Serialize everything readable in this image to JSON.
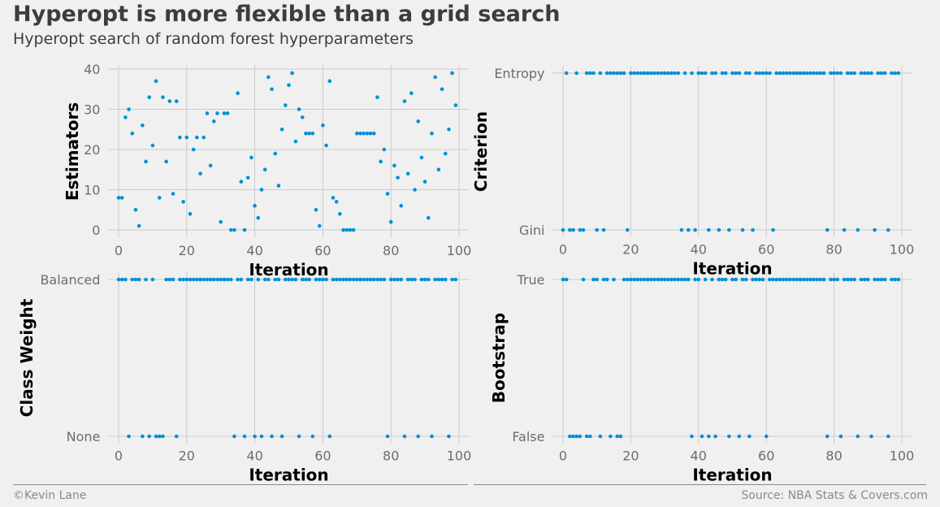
{
  "title": "Hyperopt is more flexible than a grid search",
  "subtitle": "Hyperopt search of random forest hyperparameters",
  "footer": {
    "left": "©Kevin Lane",
    "right": "Source: NBA Stats & Covers.com"
  },
  "colors": {
    "point": "#008fd5",
    "grid": "#cbcbcb",
    "tick": "#6d6d6d",
    "label": "#000000",
    "background": "#f0f0f0"
  },
  "chart_data": [
    {
      "type": "scatter",
      "title": "",
      "xlabel": "Iteration",
      "ylabel": "Estimators",
      "xlim": [
        -3,
        103
      ],
      "ylim": [
        -2,
        41
      ],
      "xticks": [
        0,
        20,
        40,
        60,
        80,
        100
      ],
      "yticks": [
        0,
        10,
        20,
        30,
        40
      ],
      "grid": true,
      "x": [
        0,
        1,
        2,
        3,
        4,
        5,
        6,
        7,
        8,
        9,
        10,
        11,
        12,
        13,
        14,
        15,
        16,
        17,
        18,
        19,
        20,
        21,
        22,
        23,
        24,
        25,
        26,
        27,
        28,
        29,
        30,
        31,
        32,
        33,
        34,
        35,
        36,
        37,
        38,
        39,
        40,
        41,
        42,
        43,
        44,
        45,
        46,
        47,
        48,
        49,
        50,
        51,
        52,
        53,
        54,
        55,
        56,
        57,
        58,
        59,
        60,
        61,
        62,
        63,
        64,
        65,
        66,
        67,
        68,
        69,
        70,
        71,
        72,
        73,
        74,
        75,
        76,
        77,
        78,
        79,
        80,
        81,
        82,
        83,
        84,
        85,
        86,
        87,
        88,
        89,
        90,
        91,
        92,
        93,
        94,
        95,
        96,
        97,
        98,
        99
      ],
      "y": [
        8,
        8,
        28,
        30,
        24,
        5,
        1,
        26,
        17,
        33,
        21,
        37,
        8,
        33,
        17,
        32,
        9,
        32,
        23,
        7,
        23,
        4,
        20,
        23,
        14,
        23,
        29,
        16,
        27,
        29,
        2,
        29,
        29,
        0,
        0,
        34,
        12,
        0,
        13,
        18,
        6,
        3,
        10,
        15,
        38,
        35,
        19,
        11,
        25,
        31,
        36,
        39,
        22,
        30,
        28,
        24,
        24,
        24,
        5,
        1,
        26,
        21,
        37,
        8,
        7,
        4,
        0,
        0,
        0,
        0,
        24,
        24,
        24,
        24,
        24,
        24,
        33,
        17,
        20,
        9,
        2,
        16,
        13,
        6,
        32,
        14,
        34,
        10,
        27,
        18,
        12,
        3,
        24,
        38,
        15,
        35,
        19,
        25,
        39,
        31
      ]
    },
    {
      "type": "scatter",
      "title": "",
      "xlabel": "Iteration",
      "ylabel": "Criterion",
      "xlim": [
        -3,
        103
      ],
      "ylim": [
        -0.045,
        1.045
      ],
      "xticks": [
        0,
        20,
        40,
        60,
        80,
        100
      ],
      "yticks": [
        0,
        1
      ],
      "ytick_labels": [
        "Gini",
        "Entropy"
      ],
      "grid": true,
      "x": [
        0,
        1,
        2,
        3,
        4,
        5,
        6,
        7,
        8,
        9,
        10,
        11,
        12,
        13,
        14,
        15,
        16,
        17,
        18,
        19,
        20,
        21,
        22,
        23,
        24,
        25,
        26,
        27,
        28,
        29,
        30,
        31,
        32,
        33,
        34,
        35,
        36,
        37,
        38,
        39,
        40,
        41,
        42,
        43,
        44,
        45,
        46,
        47,
        48,
        49,
        50,
        51,
        52,
        53,
        54,
        55,
        56,
        57,
        58,
        59,
        60,
        61,
        62,
        63,
        64,
        65,
        66,
        67,
        68,
        69,
        70,
        71,
        72,
        73,
        74,
        75,
        76,
        77,
        78,
        79,
        80,
        81,
        82,
        83,
        84,
        85,
        86,
        87,
        88,
        89,
        90,
        91,
        92,
        93,
        94,
        95,
        96,
        97,
        98,
        99
      ],
      "y": [
        0,
        1,
        0,
        0,
        1,
        0,
        0,
        1,
        1,
        1,
        0,
        1,
        0,
        1,
        1,
        1,
        1,
        1,
        1,
        0,
        1,
        1,
        1,
        1,
        1,
        1,
        1,
        1,
        1,
        1,
        1,
        1,
        1,
        1,
        1,
        0,
        1,
        0,
        1,
        0,
        1,
        1,
        1,
        0,
        1,
        1,
        0,
        1,
        1,
        0,
        1,
        1,
        1,
        0,
        1,
        1,
        0,
        1,
        1,
        1,
        1,
        1,
        0,
        1,
        1,
        1,
        1,
        1,
        1,
        1,
        1,
        1,
        1,
        1,
        1,
        1,
        1,
        1,
        0,
        1,
        1,
        1,
        1,
        0,
        1,
        1,
        1,
        0,
        1,
        1,
        1,
        1,
        0,
        1,
        1,
        1,
        0,
        1,
        1,
        1
      ]
    },
    {
      "type": "scatter",
      "title": "",
      "xlabel": "Iteration",
      "ylabel": "Class Weight",
      "xlim": [
        -3,
        103
      ],
      "ylim": [
        -0.045,
        1.045
      ],
      "xticks": [
        0,
        20,
        40,
        60,
        80,
        100
      ],
      "yticks": [
        0,
        1
      ],
      "ytick_labels": [
        "None",
        "Balanced"
      ],
      "grid": true,
      "x": [
        0,
        1,
        2,
        3,
        4,
        5,
        6,
        7,
        8,
        9,
        10,
        11,
        12,
        13,
        14,
        15,
        16,
        17,
        18,
        19,
        20,
        21,
        22,
        23,
        24,
        25,
        26,
        27,
        28,
        29,
        30,
        31,
        32,
        33,
        34,
        35,
        36,
        37,
        38,
        39,
        40,
        41,
        42,
        43,
        44,
        45,
        46,
        47,
        48,
        49,
        50,
        51,
        52,
        53,
        54,
        55,
        56,
        57,
        58,
        59,
        60,
        61,
        62,
        63,
        64,
        65,
        66,
        67,
        68,
        69,
        70,
        71,
        72,
        73,
        74,
        75,
        76,
        77,
        78,
        79,
        80,
        81,
        82,
        83,
        84,
        85,
        86,
        87,
        88,
        89,
        90,
        91,
        92,
        93,
        94,
        95,
        96,
        97,
        98,
        99
      ],
      "y": [
        1,
        1,
        1,
        0,
        1,
        1,
        1,
        0,
        1,
        0,
        1,
        0,
        0,
        0,
        1,
        1,
        1,
        0,
        1,
        1,
        1,
        1,
        1,
        1,
        1,
        1,
        1,
        1,
        1,
        1,
        1,
        1,
        1,
        1,
        0,
        1,
        1,
        0,
        1,
        1,
        0,
        1,
        0,
        1,
        1,
        0,
        1,
        1,
        0,
        1,
        1,
        1,
        1,
        0,
        1,
        1,
        1,
        0,
        1,
        1,
        1,
        1,
        0,
        1,
        1,
        1,
        1,
        1,
        1,
        1,
        1,
        1,
        1,
        1,
        1,
        1,
        1,
        1,
        1,
        0,
        1,
        1,
        1,
        1,
        0,
        1,
        1,
        1,
        0,
        1,
        1,
        1,
        0,
        1,
        1,
        1,
        1,
        0,
        1,
        1
      ]
    },
    {
      "type": "scatter",
      "title": "",
      "xlabel": "Iteration",
      "ylabel": "Bootstrap",
      "xlim": [
        -3,
        103
      ],
      "ylim": [
        -0.045,
        1.045
      ],
      "xticks": [
        0,
        20,
        40,
        60,
        80,
        100
      ],
      "yticks": [
        0,
        1
      ],
      "ytick_labels": [
        "False",
        "True"
      ],
      "grid": true,
      "x": [
        0,
        1,
        2,
        3,
        4,
        5,
        6,
        7,
        8,
        9,
        10,
        11,
        12,
        13,
        14,
        15,
        16,
        17,
        18,
        19,
        20,
        21,
        22,
        23,
        24,
        25,
        26,
        27,
        28,
        29,
        30,
        31,
        32,
        33,
        34,
        35,
        36,
        37,
        38,
        39,
        40,
        41,
        42,
        43,
        44,
        45,
        46,
        47,
        48,
        49,
        50,
        51,
        52,
        53,
        54,
        55,
        56,
        57,
        58,
        59,
        60,
        61,
        62,
        63,
        64,
        65,
        66,
        67,
        68,
        69,
        70,
        71,
        72,
        73,
        74,
        75,
        76,
        77,
        78,
        79,
        80,
        81,
        82,
        83,
        84,
        85,
        86,
        87,
        88,
        89,
        90,
        91,
        92,
        93,
        94,
        95,
        96,
        97,
        98,
        99
      ],
      "y": [
        1,
        1,
        0,
        0,
        0,
        0,
        1,
        0,
        0,
        1,
        1,
        0,
        1,
        1,
        0,
        1,
        0,
        0,
        1,
        1,
        1,
        1,
        1,
        1,
        1,
        1,
        1,
        1,
        1,
        1,
        1,
        1,
        1,
        1,
        1,
        1,
        1,
        1,
        0,
        1,
        1,
        0,
        1,
        0,
        1,
        0,
        1,
        1,
        1,
        0,
        1,
        1,
        0,
        1,
        1,
        0,
        1,
        1,
        1,
        1,
        0,
        1,
        1,
        1,
        1,
        1,
        1,
        1,
        1,
        1,
        1,
        1,
        1,
        1,
        1,
        1,
        1,
        1,
        0,
        1,
        1,
        1,
        0,
        1,
        1,
        1,
        1,
        0,
        1,
        1,
        1,
        0,
        1,
        1,
        1,
        1,
        0,
        1,
        1,
        1
      ]
    }
  ]
}
